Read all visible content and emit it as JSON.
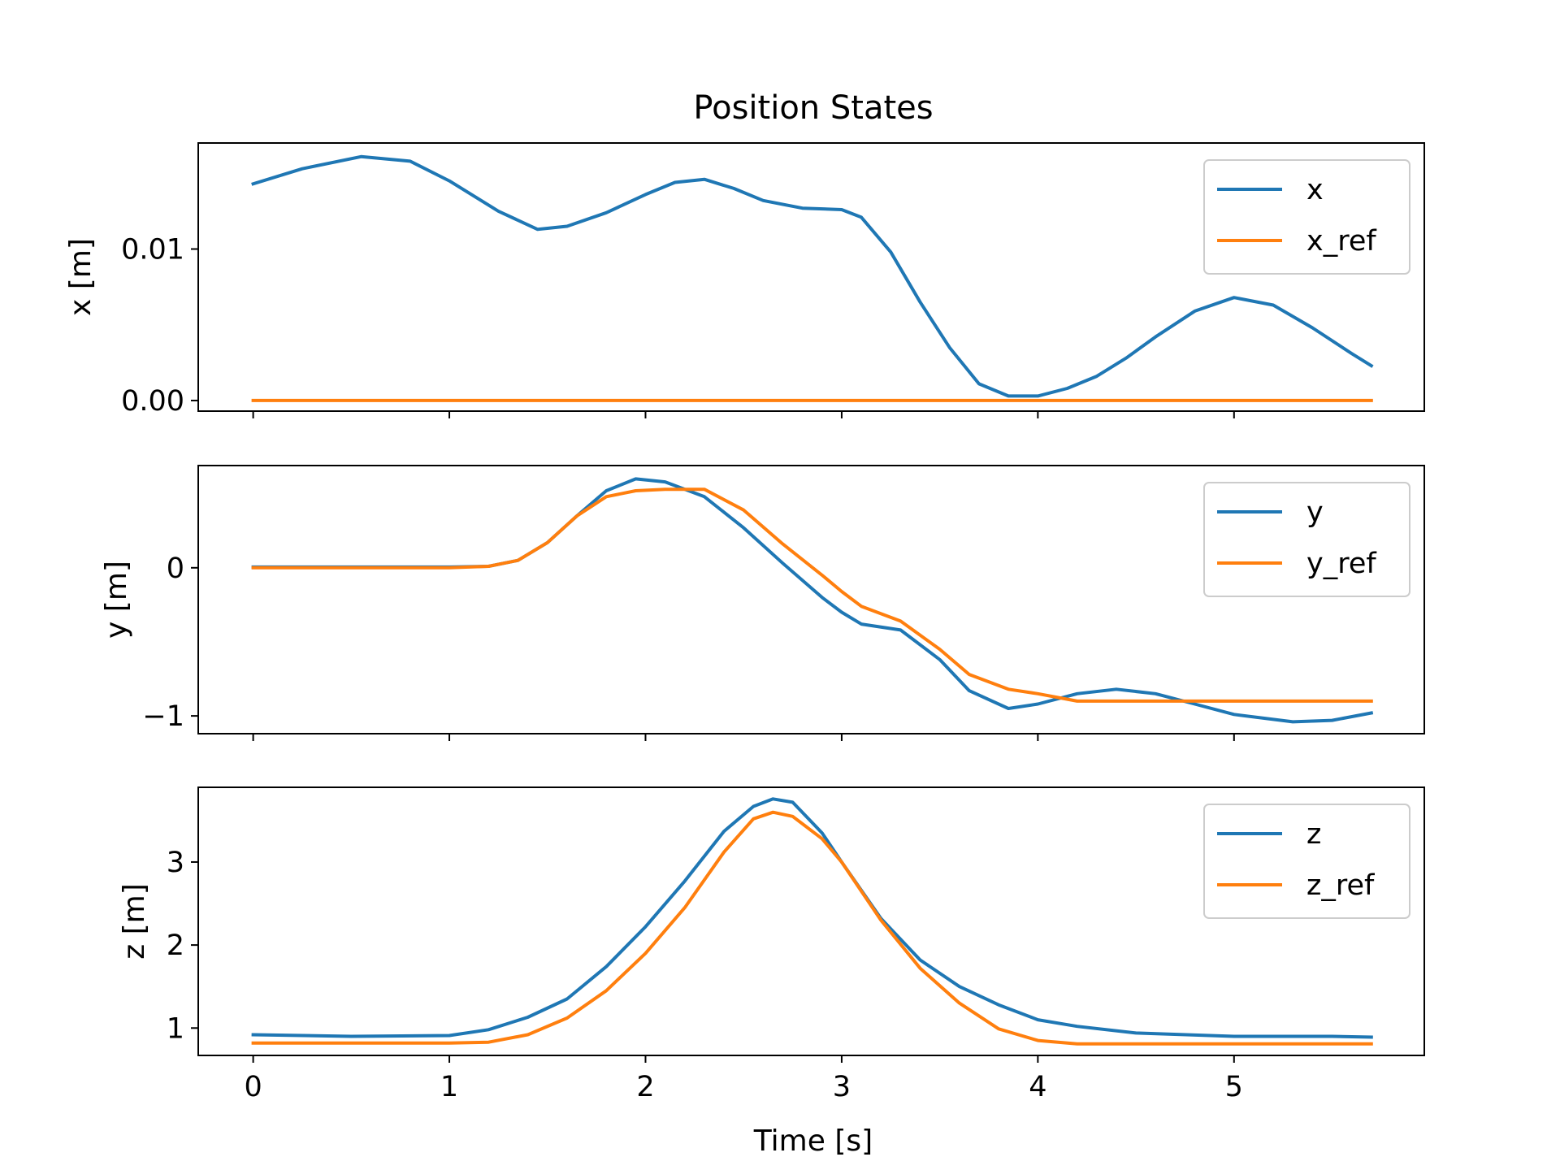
{
  "colors": {
    "series1": "#1f77b4",
    "series2": "#ff7f0e"
  },
  "chart_data": {
    "type": "line",
    "title": "Position States",
    "xlabel": "Time [s]",
    "xlim": [
      -0.28,
      5.97
    ],
    "xticks": [
      0,
      1,
      2,
      3,
      4,
      5
    ],
    "xtick_labels": [
      "0",
      "1",
      "2",
      "3",
      "4",
      "5"
    ],
    "grid": false,
    "legend_position": "upper right",
    "subplots": [
      {
        "ylabel": "x [m]",
        "ylim": [
          -0.0007,
          0.017
        ],
        "yticks": [
          0.0,
          0.01
        ],
        "ytick_labels": [
          "0.00",
          "0.01"
        ],
        "series": [
          {
            "name": "x",
            "color": "#1f77b4",
            "x": [
              0,
              0.25,
              0.55,
              0.8,
              1.0,
              1.25,
              1.45,
              1.6,
              1.8,
              2.0,
              2.15,
              2.3,
              2.45,
              2.6,
              2.8,
              3.0,
              3.1,
              3.25,
              3.4,
              3.55,
              3.7,
              3.85,
              4.0,
              4.15,
              4.3,
              4.45,
              4.6,
              4.8,
              5.0,
              5.2,
              5.4,
              5.6,
              5.7
            ],
            "y": [
              0.0143,
              0.0153,
              0.0161,
              0.0158,
              0.0145,
              0.0125,
              0.0113,
              0.0115,
              0.0124,
              0.0136,
              0.0144,
              0.0146,
              0.014,
              0.0132,
              0.0127,
              0.0126,
              0.0121,
              0.0098,
              0.0065,
              0.0035,
              0.0011,
              0.0003,
              0.0003,
              0.0008,
              0.0016,
              0.0028,
              0.0042,
              0.0059,
              0.0068,
              0.0063,
              0.0048,
              0.0031,
              0.0023
            ]
          },
          {
            "name": "x_ref",
            "color": "#ff7f0e",
            "x": [
              0,
              5.7
            ],
            "y": [
              0.0,
              0.0
            ]
          }
        ]
      },
      {
        "ylabel": "y [m]",
        "ylim": [
          -1.12,
          0.69
        ],
        "yticks": [
          0,
          -1
        ],
        "ytick_labels": [
          "0",
          "−1"
        ],
        "series": [
          {
            "name": "y",
            "color": "#1f77b4",
            "x": [
              0,
              0.5,
              1.0,
              1.2,
              1.35,
              1.5,
              1.65,
              1.8,
              1.95,
              2.1,
              2.3,
              2.5,
              2.7,
              2.9,
              3.0,
              3.1,
              3.3,
              3.5,
              3.65,
              3.85,
              4.0,
              4.2,
              4.4,
              4.6,
              4.8,
              5.0,
              5.3,
              5.5,
              5.7
            ],
            "y": [
              0.005,
              0.005,
              0.005,
              0.01,
              0.05,
              0.17,
              0.35,
              0.52,
              0.6,
              0.58,
              0.48,
              0.27,
              0.03,
              -0.2,
              -0.3,
              -0.38,
              -0.42,
              -0.62,
              -0.83,
              -0.95,
              -0.92,
              -0.85,
              -0.82,
              -0.85,
              -0.92,
              -0.99,
              -1.04,
              -1.03,
              -0.98
            ]
          },
          {
            "name": "y_ref",
            "color": "#ff7f0e",
            "x": [
              0,
              0.5,
              1.0,
              1.2,
              1.35,
              1.5,
              1.65,
              1.8,
              1.95,
              2.1,
              2.3,
              2.5,
              2.7,
              2.9,
              3.0,
              3.1,
              3.3,
              3.5,
              3.65,
              3.85,
              4.0,
              4.2,
              4.6,
              5.0,
              5.7
            ],
            "y": [
              0.0,
              0.0,
              0.0,
              0.01,
              0.05,
              0.17,
              0.35,
              0.48,
              0.52,
              0.53,
              0.53,
              0.39,
              0.16,
              -0.05,
              -0.16,
              -0.26,
              -0.36,
              -0.55,
              -0.72,
              -0.82,
              -0.85,
              -0.9,
              -0.9,
              -0.9,
              -0.9
            ]
          }
        ]
      },
      {
        "ylabel": "z [m]",
        "ylim": [
          0.67,
          3.9
        ],
        "yticks": [
          1,
          2,
          3
        ],
        "ytick_labels": [
          "1",
          "2",
          "3"
        ],
        "series": [
          {
            "name": "z",
            "color": "#1f77b4",
            "x": [
              0,
              0.5,
              1.0,
              1.2,
              1.4,
              1.6,
              1.8,
              2.0,
              2.2,
              2.4,
              2.55,
              2.65,
              2.75,
              2.9,
              3.0,
              3.2,
              3.4,
              3.6,
              3.8,
              4.0,
              4.2,
              4.5,
              5.0,
              5.5,
              5.7
            ],
            "y": [
              0.92,
              0.9,
              0.91,
              0.98,
              1.13,
              1.35,
              1.74,
              2.22,
              2.77,
              3.37,
              3.67,
              3.76,
              3.72,
              3.35,
              3.0,
              2.32,
              1.82,
              1.5,
              1.28,
              1.1,
              1.02,
              0.94,
              0.9,
              0.9,
              0.89
            ]
          },
          {
            "name": "z_ref",
            "color": "#ff7f0e",
            "x": [
              0,
              0.5,
              1.0,
              1.2,
              1.4,
              1.6,
              1.8,
              2.0,
              2.2,
              2.4,
              2.55,
              2.65,
              2.75,
              2.9,
              3.0,
              3.2,
              3.4,
              3.6,
              3.8,
              4.0,
              4.2,
              4.5,
              5.0,
              5.7
            ],
            "y": [
              0.82,
              0.82,
              0.82,
              0.83,
              0.92,
              1.12,
              1.45,
              1.9,
              2.45,
              3.12,
              3.52,
              3.6,
              3.55,
              3.28,
              3.0,
              2.3,
              1.72,
              1.3,
              0.99,
              0.85,
              0.81,
              0.81,
              0.81,
              0.81
            ]
          }
        ]
      }
    ]
  }
}
